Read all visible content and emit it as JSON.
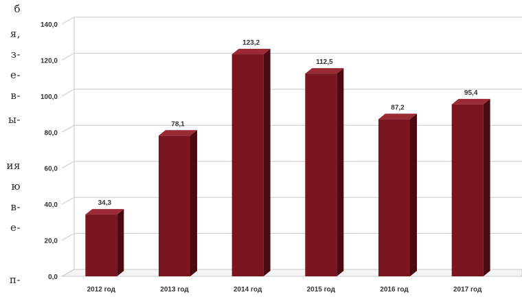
{
  "side_text_fragments": [
    "б",
    "я,",
    "з-",
    "е-",
    "в-",
    "ы-",
    "ия",
    "ю",
    "в-",
    "е-",
    "п-"
  ],
  "chart_data": {
    "type": "bar",
    "title": "",
    "xlabel": "",
    "ylabel": "",
    "categories": [
      "2012 год",
      "2013 год",
      "2014 год",
      "2015 год",
      "2016 год",
      "2017 год"
    ],
    "values": [
      34.3,
      78.1,
      123.2,
      112.5,
      87.2,
      95.4
    ],
    "value_labels": [
      "34,3",
      "78,1",
      "123,2",
      "112,5",
      "87,2",
      "95,4"
    ],
    "y_ticks": [
      "0,0",
      "20,0",
      "40,0",
      "60,0",
      "80,0",
      "100,0",
      "120,0",
      "140,0"
    ],
    "ylim": [
      0,
      140
    ],
    "grid": true,
    "legend": "none",
    "style": "3d-column",
    "colors": {
      "bar_front": "#7a1620",
      "bar_side": "#4a0a10",
      "bar_top": "#9a2a33",
      "grid": "#c8c8c8",
      "text": "#333333"
    }
  }
}
